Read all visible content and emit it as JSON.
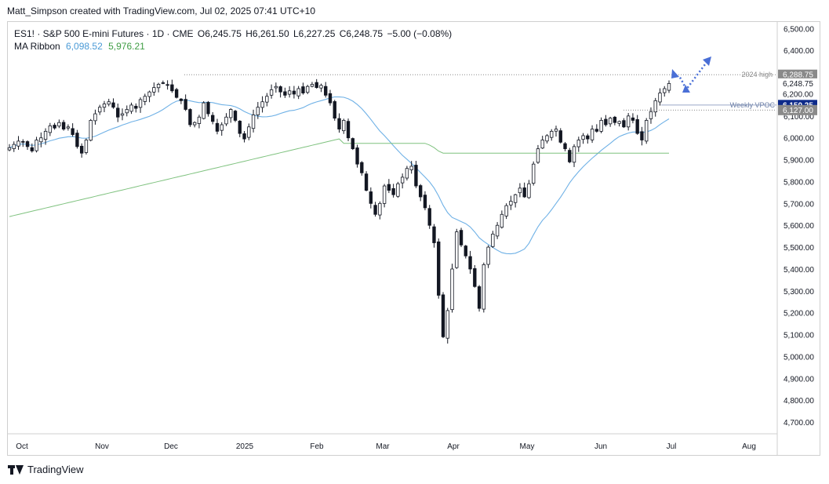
{
  "header": {
    "credit": "Matt_Simpson created with TradingView.com, Jul 02, 2025 07:41 UTC+10"
  },
  "legend": {
    "symbol_line": "ES1! · S&P 500 E-mini Futures · 1D · CME",
    "open": "O6,245.75",
    "high": "H6,261.50",
    "low": "L6,227.25",
    "close": "C6,248.75",
    "change": "−5.00 (−0.08%)",
    "ma_label": "MA Ribbon",
    "ma_fast": "6,098.52",
    "ma_slow": "5,976.21"
  },
  "footer": {
    "brand": "TradingView"
  },
  "colors": {
    "candle": "#131722",
    "ma_fast": "#6fb1e6",
    "ma_slow": "#7fc27f",
    "label_dark": "#131722",
    "label_grey": "#8a8a8a",
    "vpoc_line": "#9aa8c7",
    "vpoc_badge": "#0d2a8a",
    "arrow": "#4a6fd6"
  },
  "chart_data": {
    "type": "candlestick",
    "title": "ES1! · S&P 500 E-mini Futures · 1D · CME",
    "x_axis": {
      "labels": [
        "Oct",
        "Nov",
        "Dec",
        "2025",
        "Feb",
        "Mar",
        "Apr",
        "May",
        "Jun",
        "Jul",
        "Aug"
      ]
    },
    "y_axis": {
      "range": [
        4650,
        6530
      ],
      "tick_labels": [
        "6,500.00",
        "6,400.00",
        "6,300.00",
        "6,200.00",
        "6,100.00",
        "6,000.00",
        "5,900.00",
        "5,800.00",
        "5,700.00",
        "5,600.00",
        "5,500.00",
        "5,400.00",
        "5,300.00",
        "5,200.00",
        "5,100.00",
        "5,000.00",
        "4,900.00",
        "4,800.00",
        "4,700.00"
      ],
      "tick_values": [
        6500,
        6400,
        6300,
        6200,
        6100,
        6000,
        5900,
        5800,
        5700,
        5600,
        5500,
        5400,
        5300,
        5200,
        5100,
        5000,
        4900,
        4800,
        4700
      ]
    },
    "price_labels": [
      {
        "text": "6,288.75",
        "value": 6288.75,
        "style": "grey"
      },
      {
        "text": "6,248.75",
        "value": 6248.75,
        "style": "plain"
      },
      {
        "text": "6,200.00",
        "value": 6200,
        "style": "plain"
      },
      {
        "text": "6,150.25",
        "value": 6150.25,
        "style": "vpoc"
      },
      {
        "text": "6,127.00",
        "value": 6127,
        "style": "grey"
      }
    ],
    "annotations": [
      {
        "text": "2024 high",
        "value": 6288.75
      },
      {
        "text": "Weekly VPOC",
        "value": 6150.25
      }
    ],
    "series": [
      {
        "name": "MA Ribbon",
        "last": "6,098.52"
      },
      {
        "name": "",
        "last": "5,976.21"
      }
    ],
    "candles_anchor_close": [
      5955,
      5970,
      5985,
      5980,
      5960,
      5940,
      5990,
      6000,
      6030,
      6055,
      6045,
      6070,
      6040,
      6050,
      6015,
      5960,
      5930,
      5990,
      6080,
      6110,
      6140,
      6155,
      6165,
      6140,
      6095,
      6110,
      6130,
      6150,
      6135,
      6175,
      6190,
      6210,
      6230,
      6245,
      6250,
      6240,
      6215,
      6185,
      6170,
      6130,
      6060,
      6070,
      6095,
      6160,
      6110,
      6075,
      6030,
      6060,
      6095,
      6130,
      6080,
      6020,
      5995,
      6050,
      6105,
      6140,
      6165,
      6190,
      6220,
      6235,
      6210,
      6195,
      6215,
      6200,
      6225,
      6205,
      6235,
      6245,
      6230,
      6240,
      6195,
      6160,
      6090,
      6040,
      6080,
      6000,
      5950,
      5880,
      5840,
      5760,
      5700,
      5650,
      5700,
      5780,
      5760,
      5740,
      5790,
      5820,
      5860,
      5870,
      5780,
      5730,
      5680,
      5600,
      5520,
      5280,
      5090,
      5210,
      5400,
      5570,
      5510,
      5460,
      5400,
      5320,
      5220,
      5420,
      5500,
      5560,
      5600,
      5650,
      5690,
      5710,
      5740,
      5770,
      5730,
      5790,
      5880,
      5950,
      5990,
      6010,
      6030,
      6040,
      5980,
      5950,
      5890,
      5960,
      5990,
      6010,
      5995,
      6040,
      6030,
      6080,
      6060,
      6090,
      6070,
      6075,
      6050,
      6100,
      6080,
      6020,
      5990,
      6080,
      6120,
      6170,
      6205,
      6225,
      6248.75
    ]
  }
}
